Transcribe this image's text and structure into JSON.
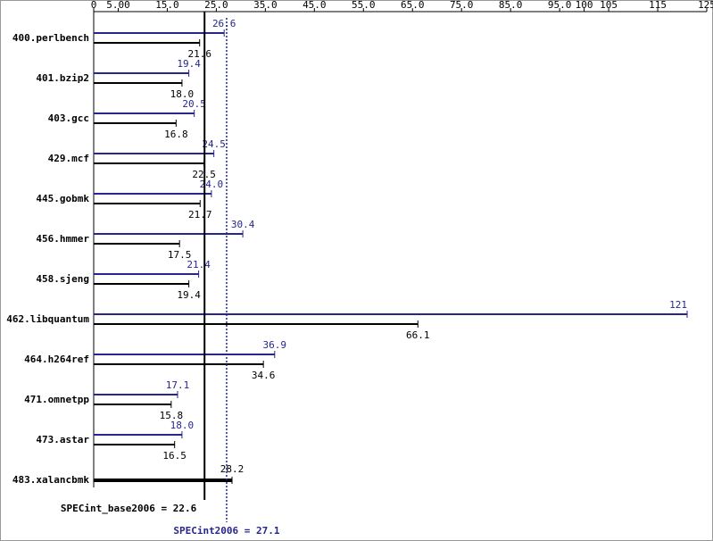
{
  "chart_data": {
    "type": "bar",
    "categories": [
      "400.perlbench",
      "401.bzip2",
      "403.gcc",
      "429.mcf",
      "445.gobmk",
      "456.hmmer",
      "458.sjeng",
      "462.libquantum",
      "464.h264ref",
      "471.omnetpp",
      "473.astar",
      "483.xalancbmk"
    ],
    "series": [
      {
        "color": "#26268c",
        "values": [
          26.6,
          19.4,
          20.5,
          24.5,
          24.0,
          30.4,
          21.4,
          121,
          36.9,
          17.1,
          18.0,
          null
        ],
        "value_labels": [
          "26.6",
          "19.4",
          "20.5",
          "24.5",
          "24.0",
          "30.4",
          "21.4",
          "121",
          "36.9",
          "17.1",
          "18.0",
          null
        ]
      },
      {
        "color": "#000000",
        "values": [
          21.6,
          18.0,
          16.8,
          22.5,
          21.7,
          17.5,
          19.4,
          66.1,
          34.6,
          15.8,
          16.5,
          28.2
        ],
        "value_labels": [
          "21.6",
          "18.0",
          "16.8",
          "22.5",
          "21.7",
          "17.5",
          "19.4",
          "66.1",
          "34.6",
          "15.8",
          "16.5",
          "28.2"
        ]
      }
    ],
    "xlim": [
      0,
      125
    ],
    "xticks": [
      0,
      {
        "value": 5,
        "label": "5.00"
      },
      {
        "value": 15,
        "label": "15.0"
      },
      {
        "value": 25,
        "label": "25.0"
      },
      {
        "value": 35,
        "label": "35.0"
      },
      {
        "value": 45,
        "label": "45.0"
      },
      {
        "value": 55,
        "label": "55.0"
      },
      {
        "value": 65,
        "label": "65.0"
      },
      {
        "value": 75,
        "label": "75.0"
      },
      {
        "value": 85,
        "label": "85.0"
      },
      {
        "value": 95,
        "label": "95.0"
      },
      100,
      105,
      115,
      125
    ],
    "reference_lines": [
      {
        "label": "SPECint_base2006 = 22.6",
        "value": 22.6,
        "color": "#000000",
        "style": "solid"
      },
      {
        "label": "SPECint2006 = 27.1",
        "value": 27.1,
        "color": "#26268c",
        "style": "dotted"
      }
    ]
  }
}
